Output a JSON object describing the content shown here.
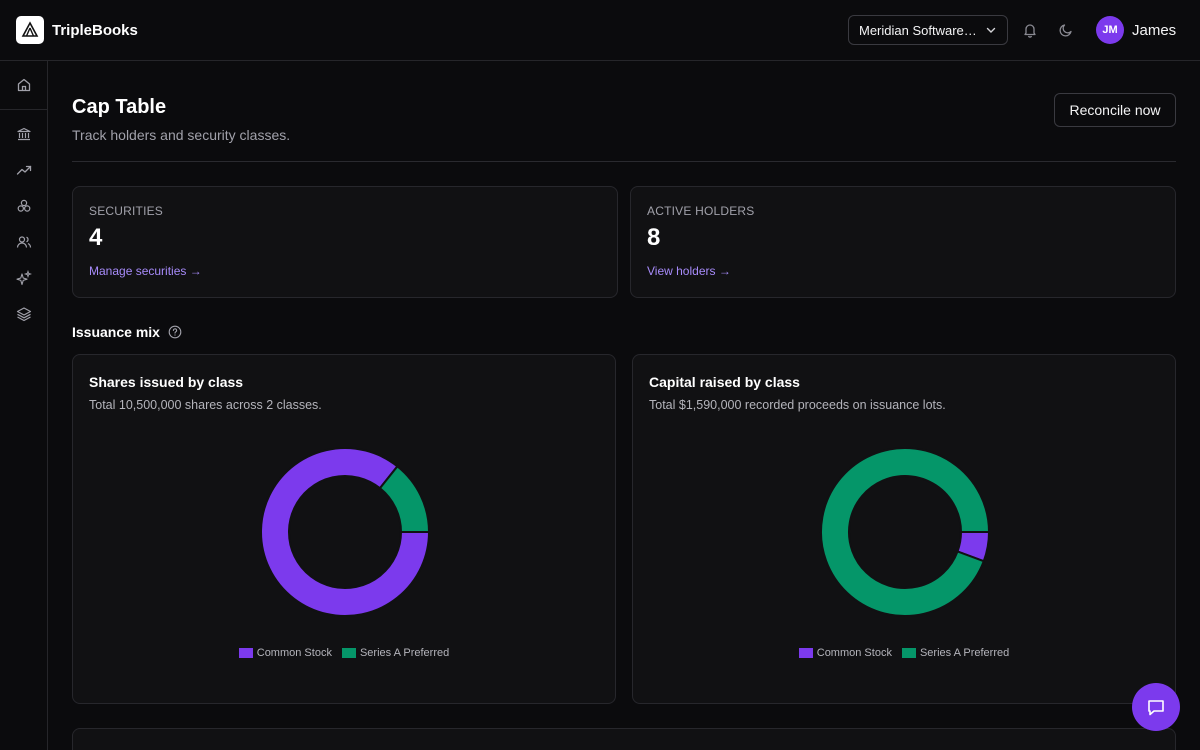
{
  "app": {
    "name": "TripleBooks"
  },
  "header": {
    "org_name": "Meridian Software Inc.",
    "user_initials": "JM",
    "user_name": "James"
  },
  "sidebar": {
    "items": [
      {
        "name": "home",
        "icon": "home-icon"
      },
      {
        "name": "banking",
        "icon": "bank-icon"
      },
      {
        "name": "reports",
        "icon": "trending-up-icon"
      },
      {
        "name": "cap-table",
        "icon": "circles-icon"
      },
      {
        "name": "people",
        "icon": "users-icon"
      },
      {
        "name": "ai",
        "icon": "sparkles-icon"
      },
      {
        "name": "layers",
        "icon": "layers-icon"
      }
    ]
  },
  "page": {
    "title": "Cap Table",
    "subtitle": "Track holders and security classes.",
    "reconcile_label": "Reconcile now"
  },
  "stats": {
    "securities": {
      "label": "SECURITIES",
      "value": "4",
      "link": "Manage securities →"
    },
    "holders": {
      "label": "ACTIVE HOLDERS",
      "value": "8",
      "link": "View holders →"
    }
  },
  "issuance": {
    "section_title": "Issuance mix"
  },
  "colors": {
    "common": "#7c3aed",
    "series_a": "#059669",
    "accent": "#a78bfa"
  },
  "chart_data": [
    {
      "type": "pie",
      "title": "Shares issued by class",
      "subtitle": "Total 10,500,000 shares across 2 classes.",
      "categories": [
        "Common Stock",
        "Series A Preferred"
      ],
      "values": [
        9000000,
        1500000
      ],
      "legend": "bottom"
    },
    {
      "type": "pie",
      "title": "Capital raised by class",
      "subtitle": "Total $1,590,000 recorded proceeds on issuance lots.",
      "categories": [
        "Common Stock",
        "Series A Preferred"
      ],
      "values": [
        90000,
        1500000
      ],
      "legend": "bottom"
    }
  ]
}
